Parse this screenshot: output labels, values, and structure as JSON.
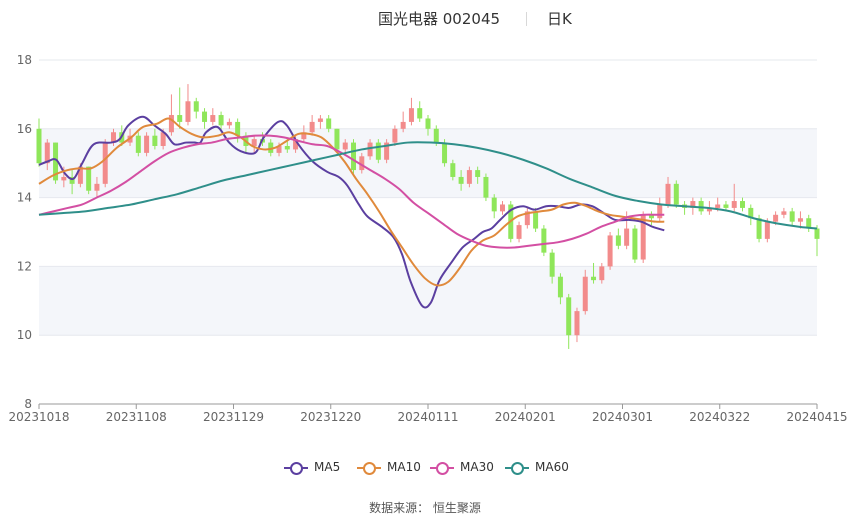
{
  "title": "国光电器 002045",
  "period": "日K",
  "source_label": "数据来源：",
  "source_value": "恒生聚源",
  "chart_data": {
    "type": "candlestick",
    "ylim": [
      8,
      18
    ],
    "yticks": [
      "8",
      "10",
      "12",
      "14",
      "16",
      "18"
    ],
    "xticks": [
      "20231018",
      "20231108",
      "20231129",
      "20231220",
      "20240111",
      "20240201",
      "20240301",
      "20240322",
      "20240415"
    ],
    "grid": true,
    "legend_position": "bottom",
    "colors": {
      "up": "#f28b8b",
      "down": "#8fe65a",
      "band": "#f4f6fa",
      "grid": "#e6e8ee"
    },
    "candles": [
      [
        16.0,
        15.0,
        16.3,
        14.9
      ],
      [
        15.0,
        15.6,
        15.7,
        14.8
      ],
      [
        15.6,
        14.5,
        15.6,
        14.4
      ],
      [
        14.5,
        14.6,
        14.9,
        14.3
      ],
      [
        14.6,
        14.4,
        14.8,
        14.1
      ],
      [
        14.4,
        14.9,
        15.0,
        14.3
      ],
      [
        14.9,
        14.2,
        14.9,
        14.1
      ],
      [
        14.2,
        14.4,
        14.6,
        14.0
      ],
      [
        14.4,
        15.6,
        15.7,
        14.3
      ],
      [
        15.6,
        15.9,
        16.0,
        15.5
      ],
      [
        15.9,
        15.6,
        16.1,
        15.5
      ],
      [
        15.6,
        15.8,
        16.0,
        15.5
      ],
      [
        15.8,
        15.3,
        15.9,
        15.2
      ],
      [
        15.3,
        15.8,
        15.9,
        15.2
      ],
      [
        15.8,
        15.5,
        16.0,
        15.4
      ],
      [
        15.5,
        15.9,
        16.0,
        15.4
      ],
      [
        15.9,
        16.4,
        17.0,
        15.8
      ],
      [
        16.4,
        16.2,
        17.2,
        16.0
      ],
      [
        16.2,
        16.8,
        17.3,
        16.1
      ],
      [
        16.8,
        16.5,
        16.9,
        16.3
      ],
      [
        16.5,
        16.2,
        16.6,
        16.0
      ],
      [
        16.2,
        16.4,
        16.6,
        16.1
      ],
      [
        16.4,
        16.1,
        16.5,
        15.9
      ],
      [
        16.1,
        16.2,
        16.3,
        16.0
      ],
      [
        16.2,
        15.8,
        16.3,
        15.6
      ],
      [
        15.8,
        15.5,
        15.9,
        15.3
      ],
      [
        15.5,
        15.7,
        15.8,
        15.3
      ],
      [
        15.7,
        15.6,
        15.9,
        15.5
      ],
      [
        15.6,
        15.3,
        15.7,
        15.2
      ],
      [
        15.3,
        15.5,
        15.6,
        15.2
      ],
      [
        15.5,
        15.4,
        15.7,
        15.3
      ],
      [
        15.4,
        15.7,
        15.8,
        15.3
      ],
      [
        15.7,
        15.9,
        16.1,
        15.6
      ],
      [
        15.9,
        16.2,
        16.4,
        15.8
      ],
      [
        16.2,
        16.3,
        16.4,
        16.0
      ],
      [
        16.3,
        16.0,
        16.4,
        15.9
      ],
      [
        16.0,
        15.4,
        16.0,
        15.3
      ],
      [
        15.4,
        15.6,
        15.7,
        15.3
      ],
      [
        15.6,
        14.8,
        15.7,
        14.7
      ],
      [
        14.8,
        15.2,
        15.3,
        14.7
      ],
      [
        15.2,
        15.6,
        15.7,
        15.1
      ],
      [
        15.6,
        15.1,
        15.7,
        15.0
      ],
      [
        15.1,
        15.6,
        15.7,
        15.0
      ],
      [
        15.6,
        16.0,
        16.1,
        15.5
      ],
      [
        16.0,
        16.2,
        16.5,
        15.9
      ],
      [
        16.2,
        16.6,
        16.9,
        16.1
      ],
      [
        16.6,
        16.3,
        16.8,
        16.2
      ],
      [
        16.3,
        16.0,
        16.4,
        15.8
      ],
      [
        16.0,
        15.6,
        16.1,
        15.5
      ],
      [
        15.6,
        15.0,
        15.7,
        14.9
      ],
      [
        15.0,
        14.6,
        15.1,
        14.5
      ],
      [
        14.6,
        14.4,
        14.8,
        14.2
      ],
      [
        14.4,
        14.8,
        14.9,
        14.3
      ],
      [
        14.8,
        14.6,
        14.9,
        14.4
      ],
      [
        14.6,
        14.0,
        14.7,
        13.9
      ],
      [
        14.0,
        13.6,
        14.1,
        13.4
      ],
      [
        13.6,
        13.8,
        13.9,
        13.5
      ],
      [
        13.8,
        12.8,
        13.9,
        12.7
      ],
      [
        12.8,
        13.2,
        13.3,
        12.7
      ],
      [
        13.2,
        13.6,
        13.7,
        13.1
      ],
      [
        13.6,
        13.1,
        13.7,
        13.0
      ],
      [
        13.1,
        12.4,
        13.2,
        12.3
      ],
      [
        12.4,
        11.7,
        12.5,
        11.5
      ],
      [
        11.7,
        11.1,
        11.8,
        10.9
      ],
      [
        11.1,
        10.0,
        11.2,
        9.6
      ],
      [
        10.0,
        10.7,
        10.8,
        9.8
      ],
      [
        10.7,
        11.7,
        11.9,
        10.6
      ],
      [
        11.7,
        11.6,
        12.1,
        11.5
      ],
      [
        11.6,
        12.0,
        12.1,
        11.5
      ],
      [
        12.0,
        12.9,
        13.0,
        11.9
      ],
      [
        12.9,
        12.6,
        13.1,
        12.5
      ],
      [
        12.6,
        13.1,
        13.6,
        12.5
      ],
      [
        13.1,
        12.2,
        13.2,
        12.1
      ],
      [
        12.2,
        13.5,
        13.6,
        12.1
      ],
      [
        13.5,
        13.4,
        13.6,
        13.2
      ],
      [
        13.4,
        13.8,
        14.0,
        13.3
      ],
      [
        13.8,
        14.4,
        14.6,
        13.7
      ],
      [
        14.4,
        13.8,
        14.5,
        13.7
      ],
      [
        13.8,
        13.7,
        13.9,
        13.5
      ],
      [
        13.7,
        13.9,
        14.0,
        13.5
      ],
      [
        13.9,
        13.6,
        14.0,
        13.5
      ],
      [
        13.6,
        13.7,
        13.9,
        13.5
      ],
      [
        13.7,
        13.8,
        14.0,
        13.6
      ],
      [
        13.8,
        13.7,
        13.9,
        13.6
      ],
      [
        13.7,
        13.9,
        14.4,
        13.6
      ],
      [
        13.9,
        13.7,
        14.0,
        13.6
      ],
      [
        13.7,
        13.4,
        13.8,
        13.2
      ],
      [
        13.4,
        12.8,
        13.5,
        12.7
      ],
      [
        12.8,
        13.3,
        13.4,
        12.7
      ],
      [
        13.3,
        13.5,
        13.6,
        13.2
      ],
      [
        13.5,
        13.6,
        13.7,
        13.4
      ],
      [
        13.6,
        13.3,
        13.7,
        13.2
      ],
      [
        13.3,
        13.4,
        13.6,
        13.1
      ],
      [
        13.4,
        13.1,
        13.5,
        13.0
      ],
      [
        13.1,
        12.8,
        13.2,
        12.3
      ]
    ],
    "series": [
      {
        "name": "MA5",
        "color": "#5b3fa0",
        "values": [
          [
            0,
            14.95
          ],
          [
            3,
            15.05
          ],
          [
            6,
            15.1
          ],
          [
            9,
            14.7
          ],
          [
            12,
            14.55
          ],
          [
            15,
            15.0
          ],
          [
            19,
            15.55
          ],
          [
            25,
            15.6
          ],
          [
            28,
            15.7
          ],
          [
            31,
            16.1
          ],
          [
            36,
            16.35
          ],
          [
            40,
            16.1
          ],
          [
            44,
            15.85
          ],
          [
            47,
            15.55
          ],
          [
            51,
            15.6
          ],
          [
            54,
            15.6
          ],
          [
            56,
            15.6
          ],
          [
            58,
            15.9
          ],
          [
            62,
            16.05
          ],
          [
            66,
            15.6
          ],
          [
            70,
            15.35
          ],
          [
            75,
            15.3
          ],
          [
            78,
            15.75
          ],
          [
            83,
            16.2
          ],
          [
            86,
            16.1
          ],
          [
            90,
            15.55
          ],
          [
            95,
            15.05
          ],
          [
            100,
            14.75
          ],
          [
            104,
            14.6
          ],
          [
            107,
            14.35
          ],
          [
            111,
            13.8
          ],
          [
            114,
            13.45
          ],
          [
            119,
            13.15
          ],
          [
            123,
            12.85
          ],
          [
            126,
            12.35
          ],
          [
            129,
            11.55
          ],
          [
            133,
            10.85
          ],
          [
            136,
            10.95
          ],
          [
            139,
            11.6
          ],
          [
            143,
            12.1
          ],
          [
            147,
            12.55
          ],
          [
            151,
            12.8
          ],
          [
            154,
            13.0
          ],
          [
            157,
            13.1
          ],
          [
            160,
            13.35
          ],
          [
            164,
            13.65
          ],
          [
            168,
            13.75
          ],
          [
            172,
            13.65
          ],
          [
            176,
            13.75
          ],
          [
            180,
            13.75
          ],
          [
            184,
            13.7
          ],
          [
            188,
            13.8
          ],
          [
            192,
            13.75
          ],
          [
            196,
            13.55
          ],
          [
            200,
            13.35
          ],
          [
            205,
            13.35
          ],
          [
            209,
            13.3
          ],
          [
            213,
            13.15
          ],
          [
            217,
            13.05
          ]
        ]
      },
      {
        "name": "MA10",
        "color": "#e08a3c",
        "values": [
          [
            0,
            14.4
          ],
          [
            5,
            14.65
          ],
          [
            10,
            14.8
          ],
          [
            14,
            14.85
          ],
          [
            18,
            14.85
          ],
          [
            22,
            15.05
          ],
          [
            27,
            15.45
          ],
          [
            32,
            15.75
          ],
          [
            36,
            16.05
          ],
          [
            41,
            16.15
          ],
          [
            45,
            16.3
          ],
          [
            49,
            16.05
          ],
          [
            53,
            15.85
          ],
          [
            57,
            15.75
          ],
          [
            62,
            15.8
          ],
          [
            66,
            15.9
          ],
          [
            70,
            15.75
          ],
          [
            74,
            15.5
          ],
          [
            78,
            15.4
          ],
          [
            82,
            15.45
          ],
          [
            86,
            15.65
          ],
          [
            90,
            15.85
          ],
          [
            94,
            15.85
          ],
          [
            98,
            15.75
          ],
          [
            102,
            15.45
          ],
          [
            106,
            15.05
          ],
          [
            110,
            14.55
          ],
          [
            114,
            14.1
          ],
          [
            118,
            13.6
          ],
          [
            122,
            13.05
          ],
          [
            126,
            12.55
          ],
          [
            130,
            12.05
          ],
          [
            134,
            11.65
          ],
          [
            138,
            11.45
          ],
          [
            142,
            11.55
          ],
          [
            146,
            11.95
          ],
          [
            150,
            12.45
          ],
          [
            154,
            12.75
          ],
          [
            158,
            12.9
          ],
          [
            162,
            13.2
          ],
          [
            166,
            13.45
          ],
          [
            170,
            13.55
          ],
          [
            174,
            13.6
          ],
          [
            178,
            13.65
          ],
          [
            182,
            13.8
          ],
          [
            186,
            13.85
          ],
          [
            190,
            13.75
          ],
          [
            194,
            13.6
          ],
          [
            198,
            13.5
          ],
          [
            202,
            13.45
          ],
          [
            206,
            13.4
          ],
          [
            210,
            13.35
          ],
          [
            214,
            13.3
          ],
          [
            217,
            13.3
          ]
        ]
      },
      {
        "name": "MA30",
        "color": "#d34fa3",
        "values": [
          [
            0,
            13.5
          ],
          [
            5,
            13.6
          ],
          [
            10,
            13.7
          ],
          [
            15,
            13.8
          ],
          [
            20,
            14.0
          ],
          [
            25,
            14.2
          ],
          [
            30,
            14.45
          ],
          [
            35,
            14.75
          ],
          [
            40,
            15.05
          ],
          [
            45,
            15.3
          ],
          [
            50,
            15.45
          ],
          [
            55,
            15.55
          ],
          [
            60,
            15.6
          ],
          [
            65,
            15.7
          ],
          [
            70,
            15.75
          ],
          [
            75,
            15.8
          ],
          [
            80,
            15.8
          ],
          [
            85,
            15.75
          ],
          [
            90,
            15.65
          ],
          [
            95,
            15.55
          ],
          [
            100,
            15.5
          ],
          [
            105,
            15.3
          ],
          [
            110,
            15.05
          ],
          [
            115,
            14.8
          ],
          [
            120,
            14.55
          ],
          [
            125,
            14.25
          ],
          [
            130,
            13.85
          ],
          [
            135,
            13.55
          ],
          [
            140,
            13.25
          ],
          [
            145,
            12.95
          ],
          [
            150,
            12.75
          ],
          [
            155,
            12.6
          ],
          [
            160,
            12.55
          ],
          [
            165,
            12.55
          ],
          [
            170,
            12.6
          ],
          [
            175,
            12.65
          ],
          [
            180,
            12.7
          ],
          [
            185,
            12.8
          ],
          [
            190,
            12.95
          ],
          [
            195,
            13.15
          ],
          [
            200,
            13.3
          ],
          [
            205,
            13.45
          ],
          [
            210,
            13.5
          ],
          [
            215,
            13.5
          ],
          [
            217,
            13.5
          ]
        ]
      },
      {
        "name": "MA60",
        "color": "#2f8f8a",
        "values": [
          [
            0,
            13.5
          ],
          [
            8,
            13.55
          ],
          [
            16,
            13.6
          ],
          [
            24,
            13.7
          ],
          [
            32,
            13.8
          ],
          [
            40,
            13.95
          ],
          [
            48,
            14.1
          ],
          [
            56,
            14.3
          ],
          [
            64,
            14.5
          ],
          [
            72,
            14.65
          ],
          [
            80,
            14.8
          ],
          [
            88,
            14.95
          ],
          [
            96,
            15.1
          ],
          [
            104,
            15.25
          ],
          [
            112,
            15.4
          ],
          [
            120,
            15.5
          ],
          [
            128,
            15.6
          ],
          [
            136,
            15.6
          ],
          [
            144,
            15.55
          ],
          [
            152,
            15.45
          ],
          [
            160,
            15.3
          ],
          [
            168,
            15.1
          ],
          [
            176,
            14.85
          ],
          [
            184,
            14.55
          ],
          [
            192,
            14.3
          ],
          [
            200,
            14.05
          ],
          [
            208,
            13.9
          ],
          [
            216,
            13.8
          ],
          [
            224,
            13.75
          ],
          [
            232,
            13.7
          ],
          [
            240,
            13.6
          ],
          [
            248,
            13.4
          ],
          [
            256,
            13.25
          ],
          [
            264,
            13.15
          ],
          [
            270,
            13.1
          ]
        ]
      }
    ]
  }
}
